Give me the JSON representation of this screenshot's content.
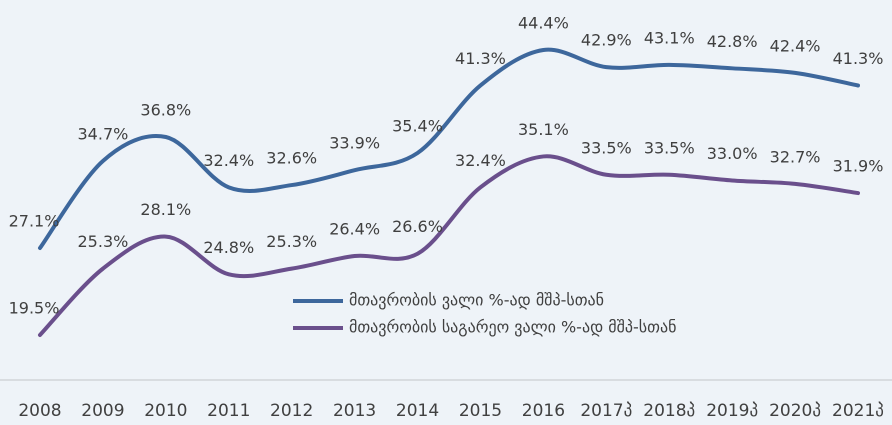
{
  "chart_data": {
    "type": "line",
    "categories": [
      "2008",
      "2009",
      "2010",
      "2011",
      "2012",
      "2013",
      "2014",
      "2015",
      "2016",
      "2017პ",
      "2018პ",
      "2019პ",
      "2020პ",
      "2021პ"
    ],
    "series": [
      {
        "name": "მთავრობის ვალი %-ად მშპ-სთან",
        "color": "#3d679c",
        "values": [
          27.1,
          34.7,
          36.8,
          32.4,
          32.6,
          33.9,
          35.4,
          41.3,
          44.4,
          42.9,
          43.1,
          42.8,
          42.4,
          41.3
        ],
        "value_labels": [
          "27.1%",
          "34.7%",
          "36.8%",
          "32.4%",
          "32.6%",
          "33.9%",
          "35.4%",
          "41.3%",
          "44.4%",
          "42.9%",
          "43.1%",
          "42.8%",
          "42.4%",
          "41.3%"
        ]
      },
      {
        "name": "მთავრობის საგარეო ვალი %-ად მშპ-სთან",
        "color": "#6a4f8c",
        "values": [
          19.5,
          25.3,
          28.1,
          24.8,
          25.3,
          26.4,
          26.6,
          32.4,
          35.1,
          33.5,
          33.5,
          33.0,
          32.7,
          31.9
        ],
        "value_labels": [
          "19.5%",
          "25.3%",
          "28.1%",
          "24.8%",
          "25.3%",
          "26.4%",
          "26.6%",
          "32.4%",
          "35.1%",
          "33.5%",
          "33.5%",
          "33.0%",
          "32.7%",
          "31.9%"
        ]
      }
    ],
    "legend": "center"
  }
}
